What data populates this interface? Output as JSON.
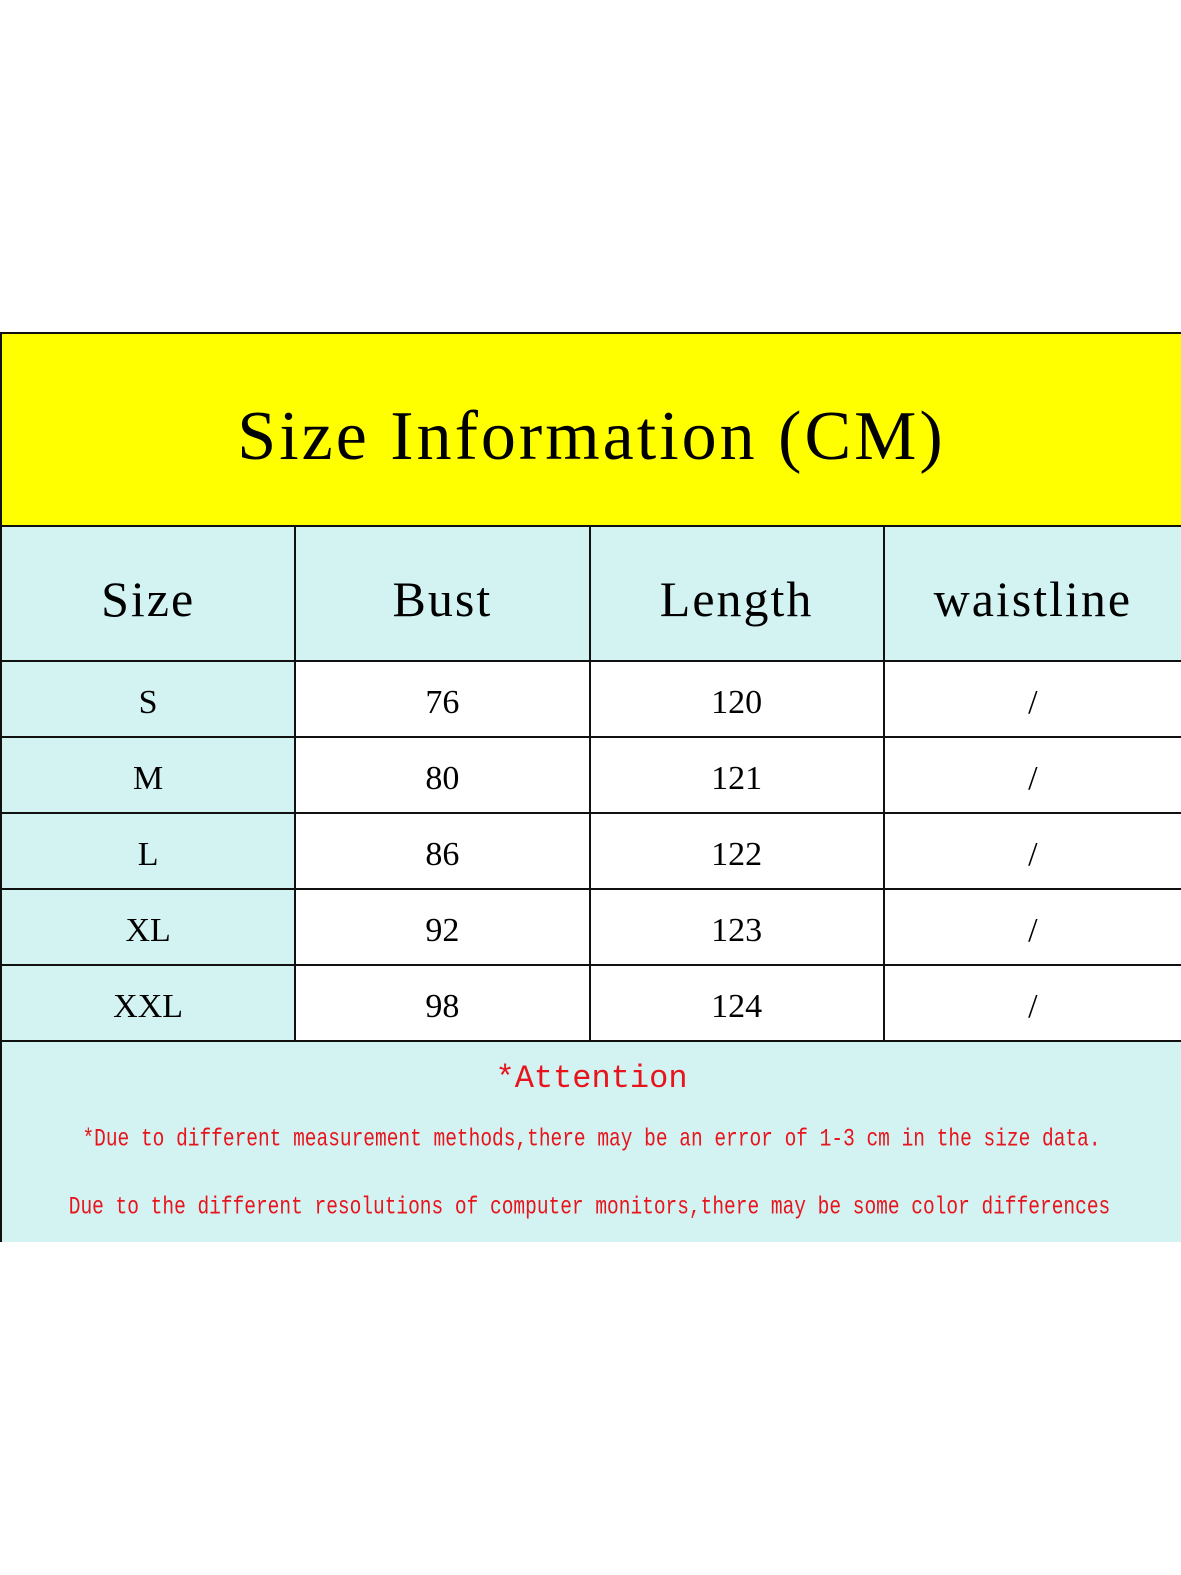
{
  "title": "Size Information (CM)",
  "headers": [
    "Size",
    "Bust",
    "Length",
    "waistline"
  ],
  "rows": [
    [
      "S",
      "76",
      "120",
      "/"
    ],
    [
      "M",
      "80",
      "121",
      "/"
    ],
    [
      "L",
      "86",
      "122",
      "/"
    ],
    [
      "XL",
      "92",
      "123",
      "/"
    ],
    [
      "XXL",
      "98",
      "124",
      "/"
    ]
  ],
  "attention": {
    "heading": "*Attention",
    "line1": "*Due to different measurement methods,there may be an error of 1-3 cm in the size data.",
    "line2": "Due to the different resolutions of computer monitors,there may be some color differences"
  },
  "colors": {
    "title_bg": "#ffff00",
    "header_bg": "#d3f3f3",
    "note_text": "#e8141c"
  }
}
